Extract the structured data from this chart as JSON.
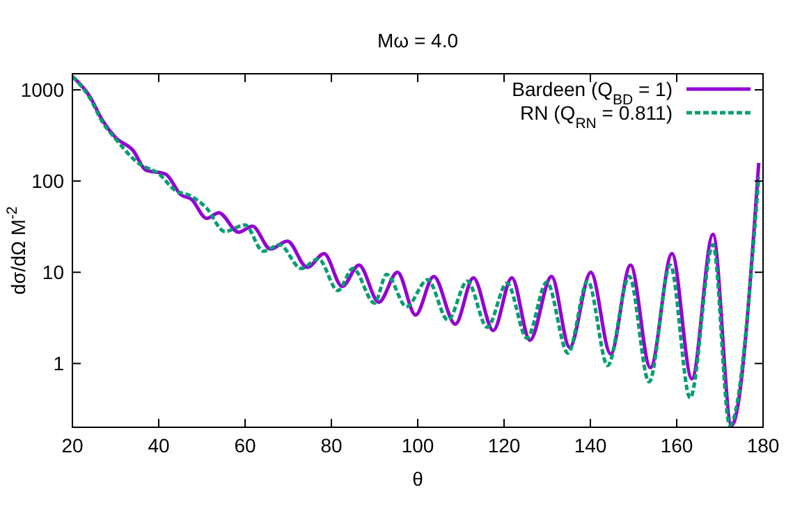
{
  "chart_data": {
    "type": "line",
    "title": "Mω = 4.0",
    "xlabel": "θ",
    "ylabel": "dσ/dΩ M$^{-2}$",
    "log": "y",
    "xlim": [
      20,
      180
    ],
    "xticks": [
      20,
      40,
      60,
      80,
      100,
      120,
      140,
      160,
      180
    ],
    "ylim": [
      0.2,
      1500
    ],
    "yticks": [
      1,
      10,
      100,
      1000
    ],
    "legend": "top right",
    "grid": false,
    "series": [
      {
        "name": "Bardeen (Q$_{BD}$ = 1)",
        "color": "#9400d3",
        "line_style": "solid",
        "x": [
          20,
          24,
          27,
          30,
          34.1,
          37,
          41.6,
          45.1,
          47.6,
          51.1,
          53.9,
          58.5,
          61.7,
          65.9,
          69.8,
          74.4,
          78.3,
          82.5,
          86.4,
          91,
          95.3,
          99.5,
          103.7,
          108.7,
          112.9,
          117.5,
          121.8,
          126,
          131,
          135.2,
          140.1,
          144.7,
          149.3,
          153.9,
          158.9,
          163.5,
          168.4,
          172.7,
          179
        ],
        "values": [
          1400,
          850,
          460,
          300,
          215,
          132,
          119,
          71,
          63,
          39,
          45,
          27.5,
          32,
          18,
          22,
          11.3,
          16,
          7,
          12,
          4.7,
          10,
          3.4,
          9,
          2.7,
          8.7,
          2.3,
          8.7,
          1.8,
          9,
          1.5,
          10,
          1.27,
          12,
          0.9,
          16,
          0.68,
          26,
          0.21,
          158
        ]
      },
      {
        "name": "RN (Q$_{RN}$ = 0.811)",
        "color": "#009e73",
        "line_style": "dashed",
        "x": [
          20,
          24,
          27,
          30,
          35.2,
          40,
          44,
          47,
          51,
          55.3,
          60,
          64.2,
          68,
          73,
          77,
          81.5,
          85,
          90,
          92.8,
          97.4,
          102.3,
          107,
          111.5,
          116.1,
          120.7,
          125.3,
          129.9,
          134.8,
          139.4,
          144,
          149,
          153.6,
          158.5,
          163.1,
          168.4,
          172.3,
          179
        ],
        "values": [
          1400,
          820,
          440,
          290,
          158,
          120,
          78,
          70,
          51,
          28,
          33,
          17,
          20,
          11,
          14,
          6.3,
          11,
          4.6,
          9.5,
          4.2,
          8.3,
          3,
          8,
          2.5,
          7.6,
          1.9,
          7.8,
          1.3,
          8,
          0.95,
          9,
          0.63,
          12,
          0.42,
          20,
          0.21,
          110
        ]
      }
    ]
  }
}
